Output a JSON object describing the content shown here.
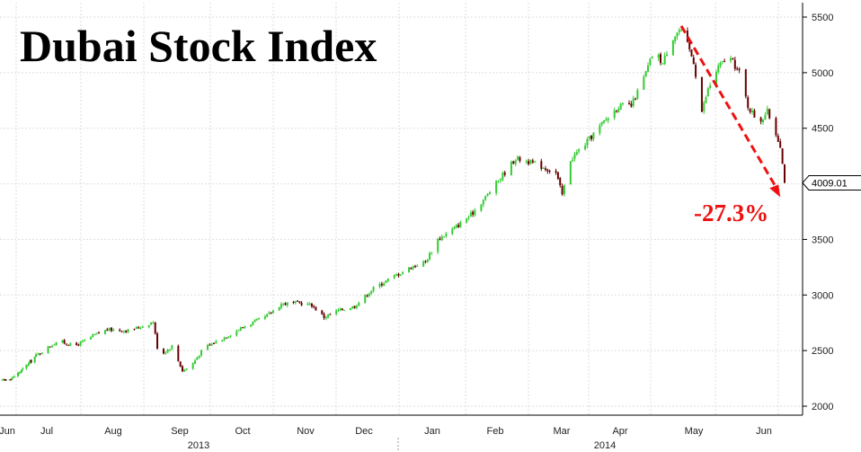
{
  "chart_data": {
    "type": "candlestick",
    "title": "Dubai Stock Index",
    "ylim": [
      2000,
      5500
    ],
    "y_ticks": [
      2000,
      2500,
      3000,
      3500,
      4000,
      4500,
      5000,
      5500
    ],
    "y_tick_labels": [
      "2000",
      "2500",
      "3000",
      "3500",
      "4000",
      "4500",
      "5000",
      "5500"
    ],
    "x_tick_labels": [
      "Jun",
      "Jul",
      "Aug",
      "Sep",
      "Oct",
      "Nov",
      "Dec",
      "Jan",
      "Feb",
      "Mar",
      "Apr",
      "May",
      "Jun"
    ],
    "year_labels": [
      "2013",
      "2014"
    ],
    "grid": true,
    "last_value_label": "4009.01",
    "annotation": {
      "text": "-27.3%",
      "from_value": 5420,
      "to_value": 3880,
      "color": "#ee1111"
    },
    "up_color": "#33cc33",
    "down_color": "#660000",
    "anchors": [
      [
        "2013-06-03",
        2230
      ],
      [
        "2013-06-12",
        2260
      ],
      [
        "2013-06-20",
        2330
      ],
      [
        "2013-06-28",
        2420
      ],
      [
        "2013-07-08",
        2540
      ],
      [
        "2013-07-12",
        2590
      ],
      [
        "2013-07-20",
        2540
      ],
      [
        "2013-07-30",
        2640
      ],
      [
        "2013-08-05",
        2690
      ],
      [
        "2013-08-15",
        2680
      ],
      [
        "2013-08-22",
        2720
      ],
      [
        "2013-08-27",
        2760
      ],
      [
        "2013-08-29",
        2530
      ],
      [
        "2013-09-01",
        2480
      ],
      [
        "2013-09-05",
        2540
      ],
      [
        "2013-09-10",
        2320
      ],
      [
        "2013-09-14",
        2360
      ],
      [
        "2013-09-20",
        2520
      ],
      [
        "2013-09-30",
        2620
      ],
      [
        "2013-10-10",
        2720
      ],
      [
        "2013-10-20",
        2800
      ],
      [
        "2013-10-28",
        2920
      ],
      [
        "2013-11-05",
        2930
      ],
      [
        "2013-11-12",
        2910
      ],
      [
        "2013-11-18",
        2800
      ],
      [
        "2013-11-25",
        2860
      ],
      [
        "2013-12-03",
        2900
      ],
      [
        "2013-12-12",
        3060
      ],
      [
        "2013-12-20",
        3150
      ],
      [
        "2013-12-31",
        3260
      ],
      [
        "2014-01-06",
        3300
      ],
      [
        "2014-01-12",
        3500
      ],
      [
        "2014-01-20",
        3600
      ],
      [
        "2014-01-28",
        3720
      ],
      [
        "2014-02-04",
        3880
      ],
      [
        "2014-02-12",
        4080
      ],
      [
        "2014-02-18",
        4230
      ],
      [
        "2014-02-24",
        4200
      ],
      [
        "2014-03-03",
        4150
      ],
      [
        "2014-03-09",
        4100
      ],
      [
        "2014-03-12",
        3900
      ],
      [
        "2014-03-16",
        4220
      ],
      [
        "2014-03-24",
        4380
      ],
      [
        "2014-04-01",
        4560
      ],
      [
        "2014-04-08",
        4700
      ],
      [
        "2014-04-14",
        4700
      ],
      [
        "2014-04-20",
        4950
      ],
      [
        "2014-04-25",
        5200
      ],
      [
        "2014-04-29",
        5080
      ],
      [
        "2014-05-03",
        5300
      ],
      [
        "2014-05-07",
        5380
      ],
      [
        "2014-05-10",
        5300
      ],
      [
        "2014-05-14",
        5100
      ],
      [
        "2014-05-18",
        4650
      ],
      [
        "2014-05-21",
        4850
      ],
      [
        "2014-05-26",
        5050
      ],
      [
        "2014-05-31",
        5150
      ],
      [
        "2014-06-05",
        5000
      ],
      [
        "2014-06-09",
        4700
      ],
      [
        "2014-06-14",
        4550
      ],
      [
        "2014-06-18",
        4650
      ],
      [
        "2014-06-20",
        4550
      ],
      [
        "2014-06-24",
        4350
      ],
      [
        "2014-06-26",
        4009
      ]
    ]
  }
}
